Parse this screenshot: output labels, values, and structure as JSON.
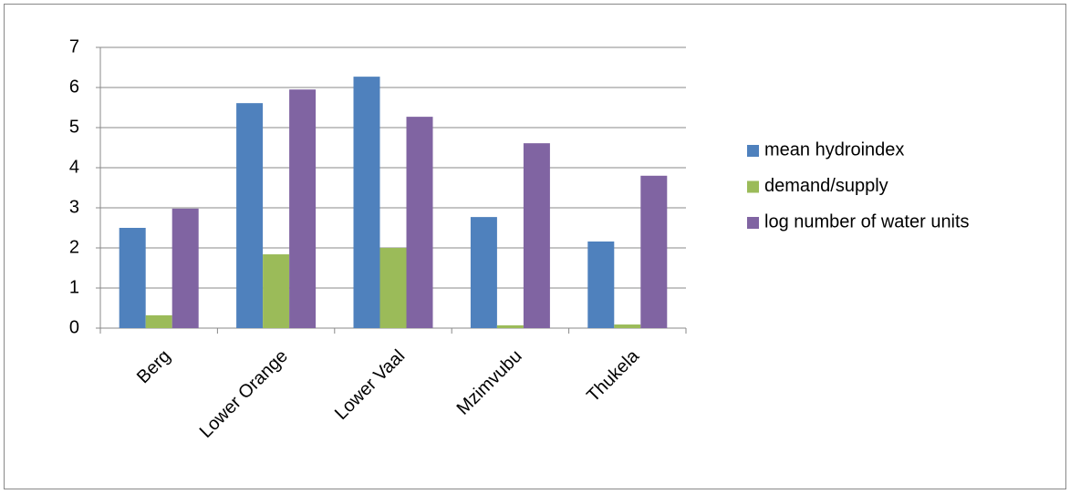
{
  "chart_data": {
    "type": "bar",
    "categories": [
      "Berg",
      "Lower Orange",
      "Lower Vaal",
      "Mzimvubu",
      "Thukela"
    ],
    "series": [
      {
        "name": "mean hydroindex",
        "color": "#4f81bd",
        "values": [
          2.5,
          5.61,
          6.27,
          2.77,
          2.16
        ]
      },
      {
        "name": "demand/supply",
        "color": "#9bbb59",
        "values": [
          0.32,
          1.84,
          2.0,
          0.07,
          0.09
        ]
      },
      {
        "name": "log number of water units",
        "color": "#8064a2",
        "values": [
          2.98,
          5.95,
          5.27,
          4.61,
          3.8
        ]
      }
    ],
    "ylim": [
      0,
      7
    ],
    "yticks": [
      0,
      1,
      2,
      3,
      4,
      5,
      6,
      7
    ],
    "grid": true,
    "legend": "right"
  }
}
